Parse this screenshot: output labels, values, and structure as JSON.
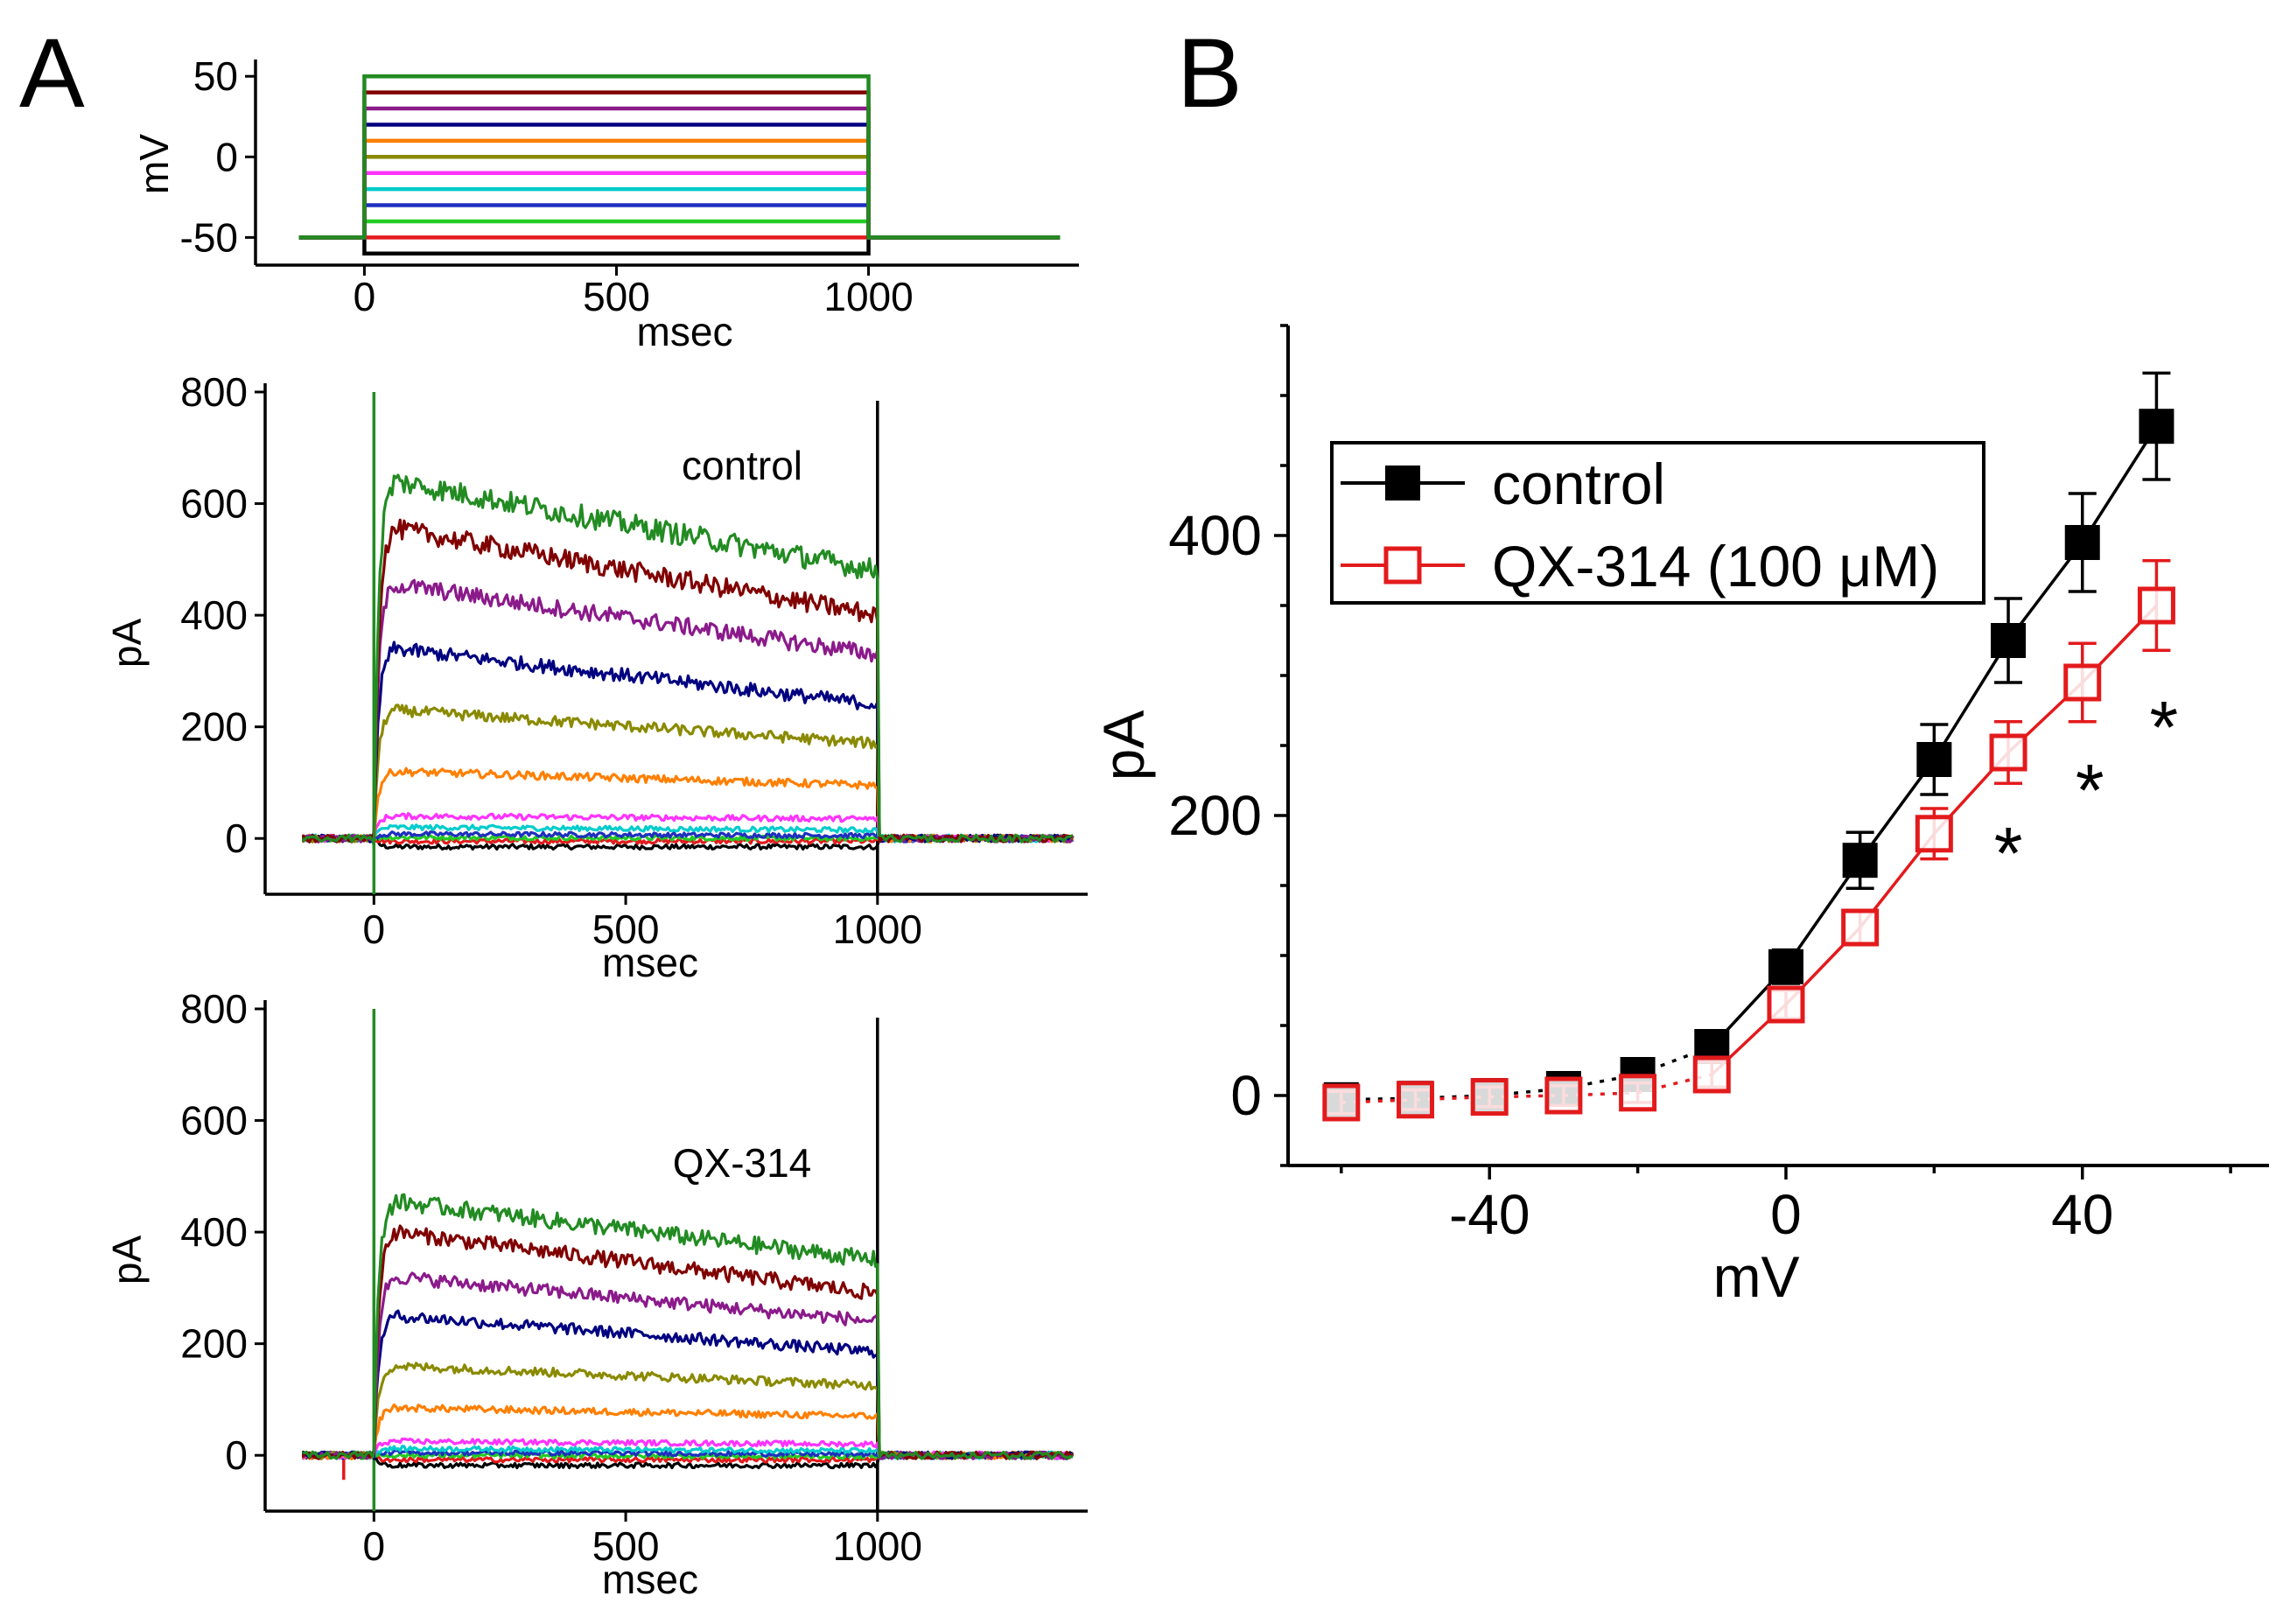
{
  "chart_data": [
    {
      "id": "stim",
      "panel": "A",
      "type": "line",
      "title": "",
      "xlabel": "msec",
      "ylabel": "mV",
      "xlim": [
        -150,
        1400
      ],
      "ylim": [
        -65,
        55
      ],
      "xticks": [
        0,
        500,
        1000
      ],
      "yticks": [
        50,
        0,
        -50
      ],
      "holding_mV": -50,
      "step_start_ms": 0,
      "step_end_ms": 1000,
      "series": [
        {
          "name": "-60 mV",
          "mV": -60,
          "color": "#000000"
        },
        {
          "name": "-50 mV",
          "mV": -50,
          "color": "#e31a1c"
        },
        {
          "name": "-40 mV",
          "mV": -40,
          "color": "#22cc22"
        },
        {
          "name": "-30 mV",
          "mV": -30,
          "color": "#1f2fbf"
        },
        {
          "name": "-20 mV",
          "mV": -20,
          "color": "#00cccc"
        },
        {
          "name": "-10 mV",
          "mV": -10,
          "color": "#ff33ff"
        },
        {
          "name": "0 mV",
          "mV": 0,
          "color": "#8a8a00"
        },
        {
          "name": "10 mV",
          "mV": 10,
          "color": "#ff7f00"
        },
        {
          "name": "20 mV",
          "mV": 20,
          "color": "#000080"
        },
        {
          "name": "30 mV",
          "mV": 30,
          "color": "#8b1a8b"
        },
        {
          "name": "40 mV",
          "mV": 40,
          "color": "#800000"
        },
        {
          "name": "50 mV",
          "mV": 50,
          "color": "#228b22"
        }
      ]
    },
    {
      "id": "control",
      "panel": "A",
      "type": "line",
      "title": "control",
      "xlabel": "msec",
      "ylabel": "pA",
      "xlim": [
        -150,
        1400
      ],
      "ylim": [
        -100,
        800
      ],
      "xticks": [
        0,
        500,
        1000
      ],
      "yticks": [
        800,
        600,
        400,
        200,
        0
      ],
      "series": [
        {
          "name": "50 mV",
          "color": "#228b22",
          "peak": 640,
          "end": 480
        },
        {
          "name": "40 mV",
          "color": "#800000",
          "peak": 555,
          "end": 400
        },
        {
          "name": "30 mV",
          "color": "#8b1a8b",
          "peak": 455,
          "end": 330
        },
        {
          "name": "20 mV",
          "color": "#000080",
          "peak": 340,
          "end": 240
        },
        {
          "name": "10 mV",
          "color": "#8a8a00",
          "peak": 230,
          "end": 170
        },
        {
          "name": "0 mV",
          "color": "#ff7f00",
          "peak": 120,
          "end": 95
        },
        {
          "name": "-10 mV",
          "color": "#ff33ff",
          "peak": 40,
          "end": 35
        },
        {
          "name": "-20 mV",
          "color": "#00cccc",
          "peak": 20,
          "end": 15
        },
        {
          "name": "-30 mV",
          "color": "#1f2fbf",
          "peak": 8,
          "end": 5
        },
        {
          "name": "-40 mV",
          "color": "#22cc22",
          "peak": 2,
          "end": 0
        },
        {
          "name": "-50 mV",
          "color": "#e31a1c",
          "peak": -5,
          "end": -5
        },
        {
          "name": "-60 mV",
          "color": "#000000",
          "peak": -15,
          "end": -15
        }
      ]
    },
    {
      "id": "qx",
      "panel": "A",
      "type": "line",
      "title": "QX-314",
      "xlabel": "msec",
      "ylabel": "pA",
      "xlim": [
        -150,
        1400
      ],
      "ylim": [
        -100,
        800
      ],
      "xticks": [
        0,
        500,
        1000
      ],
      "yticks": [
        800,
        600,
        400,
        200,
        0
      ],
      "series": [
        {
          "name": "50 mV",
          "color": "#228b22",
          "peak": 455,
          "end": 350
        },
        {
          "name": "40 mV",
          "color": "#800000",
          "peak": 400,
          "end": 290
        },
        {
          "name": "30 mV",
          "color": "#8b1a8b",
          "peak": 320,
          "end": 240
        },
        {
          "name": "20 mV",
          "color": "#000080",
          "peak": 250,
          "end": 185
        },
        {
          "name": "10 mV",
          "color": "#8a8a00",
          "peak": 160,
          "end": 125
        },
        {
          "name": "0 mV",
          "color": "#ff7f00",
          "peak": 85,
          "end": 70
        },
        {
          "name": "-10 mV",
          "color": "#ff33ff",
          "peak": 25,
          "end": 20
        },
        {
          "name": "-20 mV",
          "color": "#00cccc",
          "peak": 12,
          "end": 8
        },
        {
          "name": "-30 mV",
          "color": "#1f2fbf",
          "peak": 5,
          "end": 2
        },
        {
          "name": "-40 mV",
          "color": "#22cc22",
          "peak": 0,
          "end": -2
        },
        {
          "name": "-50 mV",
          "color": "#e31a1c",
          "peak": -8,
          "end": -8
        },
        {
          "name": "-60 mV",
          "color": "#000000",
          "peak": -18,
          "end": -18
        }
      ]
    },
    {
      "id": "iv",
      "panel": "B",
      "type": "scatter",
      "title": "",
      "xlabel": "mV",
      "ylabel": "pA",
      "xlim": [
        -66,
        64
      ],
      "ylim": [
        -50,
        550
      ],
      "xticks": [
        -40,
        0,
        40
      ],
      "yticks": [
        400,
        200,
        0
      ],
      "legend_position": "top-left",
      "series": [
        {
          "name": "control",
          "color": "#000000",
          "marker": "filled-square",
          "x": [
            -60,
            -50,
            -40,
            -30,
            -20,
            -10,
            0,
            10,
            20,
            30,
            40,
            50
          ],
          "y": [
            -3,
            -2,
            0,
            5,
            15,
            35,
            92,
            168,
            240,
            325,
            395,
            478
          ],
          "err": [
            8,
            7,
            7,
            8,
            8,
            10,
            12,
            20,
            25,
            30,
            35,
            38
          ]
        },
        {
          "name": "QX-314 (100 μM)",
          "color": "#e31a1c",
          "marker": "open-square",
          "x": [
            -60,
            -50,
            -40,
            -30,
            -20,
            -10,
            0,
            10,
            20,
            30,
            40,
            50
          ],
          "y": [
            -5,
            -3,
            -1,
            0,
            2,
            15,
            65,
            120,
            187,
            245,
            295,
            350
          ],
          "err": [
            8,
            7,
            7,
            7,
            7,
            9,
            10,
            12,
            18,
            22,
            28,
            32
          ]
        }
      ],
      "annotations": [
        {
          "text": "*",
          "x": 30,
          "y": 180
        },
        {
          "text": "*",
          "x": 41,
          "y": 225
        },
        {
          "text": "*",
          "x": 51,
          "y": 270
        }
      ]
    }
  ],
  "labels": {
    "panel_a": "A",
    "panel_b": "B"
  }
}
